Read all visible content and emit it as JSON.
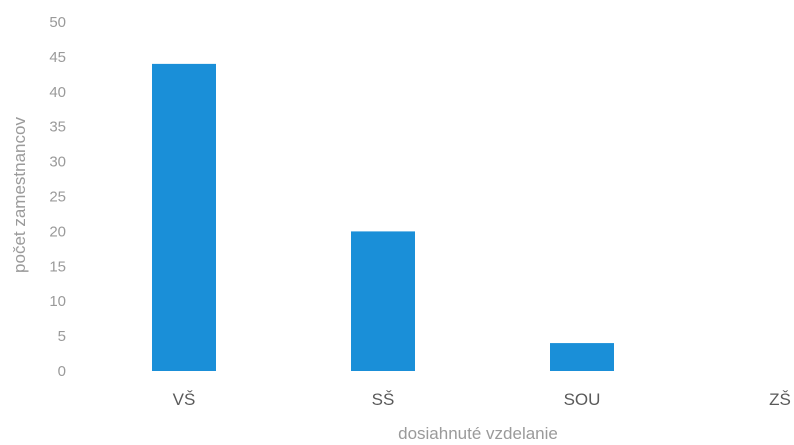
{
  "chart_data": {
    "type": "bar",
    "title": "",
    "xlabel": "dosiahnuté vzdelanie",
    "ylabel": "počet zamestnancov",
    "categories": [
      "VŠ",
      "SŠ",
      "SOU",
      "ZŠ"
    ],
    "values": [
      44,
      20,
      4,
      0
    ],
    "ylim": [
      0,
      50
    ],
    "yticks": [
      0,
      5,
      10,
      15,
      20,
      25,
      30,
      35,
      40,
      45,
      50
    ],
    "grid": false,
    "legend": "none",
    "bar_color": "#1a8fd8"
  }
}
